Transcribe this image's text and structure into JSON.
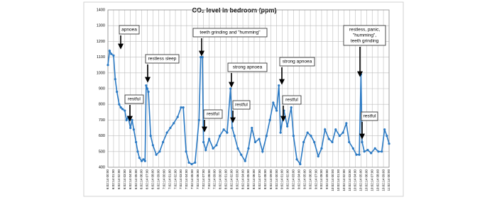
{
  "chart_data": {
    "type": "line",
    "title": "CO₂ level in bedroom (ppm)",
    "xlim": [
      0,
      50
    ],
    "ylim": [
      400,
      1400
    ],
    "yticks": [
      400,
      500,
      600,
      700,
      800,
      900,
      1000,
      1100,
      1200,
      1300,
      1400
    ],
    "xticks": [
      {
        "value": 0,
        "label": "6:02:14 00:00"
      },
      {
        "value": 1,
        "label": "6:02:14 01:00"
      },
      {
        "value": 2,
        "label": "6:02:14 02:00"
      },
      {
        "value": 3,
        "label": "6:02:14 03:00"
      },
      {
        "value": 4,
        "label": "6:02:14 04:00"
      },
      {
        "value": 5,
        "label": "6:02:14 05:00"
      },
      {
        "value": 6,
        "label": "6:02:14 06:00"
      },
      {
        "value": 7,
        "label": "6:02:14 07:00"
      },
      {
        "value": 8,
        "label": "6:02:14 08:00"
      },
      {
        "value": 9,
        "label": "6:02:14 09:00"
      },
      {
        "value": 10,
        "label": "7:02:14 00:00"
      },
      {
        "value": 11,
        "label": "7:02:14 01:00"
      },
      {
        "value": 12,
        "label": "7:02:14 02:00"
      },
      {
        "value": 13,
        "label": "7:02:14 03:00"
      },
      {
        "value": 14,
        "label": "7:02:14 04:00"
      },
      {
        "value": 15,
        "label": "7:02:14 05:00"
      },
      {
        "value": 16,
        "label": "7:02:14 06:00"
      },
      {
        "value": 17,
        "label": "7:02:14 07:00"
      },
      {
        "value": 18,
        "label": "7:02:14 08:00"
      },
      {
        "value": 19,
        "label": "7:02:14 09:00"
      },
      {
        "value": 20,
        "label": "8:02:14 00:00"
      },
      {
        "value": 21,
        "label": "8:02:14 01:00"
      },
      {
        "value": 22,
        "label": "8:02:14 02:00"
      },
      {
        "value": 23,
        "label": "8:02:14 03:00"
      },
      {
        "value": 24,
        "label": "8:02:14 04:00"
      },
      {
        "value": 25,
        "label": "8:02:14 05:00"
      },
      {
        "value": 26,
        "label": "8:02:14 06:00"
      },
      {
        "value": 27,
        "label": "8:02:14 07:00"
      },
      {
        "value": 28,
        "label": "8:02:14 08:00"
      },
      {
        "value": 29,
        "label": "8:02:14 09:00"
      },
      {
        "value": 30,
        "label": "9:02:14 00:00"
      },
      {
        "value": 31,
        "label": "9:02:14 01:00"
      },
      {
        "value": 32,
        "label": "9:02:14 02:00"
      },
      {
        "value": 33,
        "label": "9:02:14 03:00"
      },
      {
        "value": 34,
        "label": "9:02:14 04:00"
      },
      {
        "value": 35,
        "label": "9:02:14 05:00"
      },
      {
        "value": 36,
        "label": "9:02:14 06:00"
      },
      {
        "value": 37,
        "label": "9:02:14 07:00"
      },
      {
        "value": 38,
        "label": "9:02:14 08:00"
      },
      {
        "value": 39,
        "label": "9:02:14 09:00"
      },
      {
        "value": 40,
        "label": "10:02:14 00:00"
      },
      {
        "value": 41,
        "label": "10:02:14 01:00"
      },
      {
        "value": 42,
        "label": "10:02:14 02:00"
      },
      {
        "value": 43,
        "label": "10:02:14 03:00"
      },
      {
        "value": 44,
        "label": "10:02:14 04:00"
      },
      {
        "value": 45,
        "label": "10:02:14 05:00"
      },
      {
        "value": 46,
        "label": "10:02:14 06:00"
      },
      {
        "value": 47,
        "label": "10:02:14 07:00"
      },
      {
        "value": 48,
        "label": "10:02:14 08:00"
      },
      {
        "value": 49,
        "label": "10:02:14 09:00"
      },
      {
        "value": 50,
        "label": "11:02:14 00:00"
      }
    ],
    "grid": true,
    "series": [
      {
        "color": "#2b7ac4",
        "x": [
          0,
          0.3,
          0.6,
          1,
          1.3,
          1.6,
          2,
          2.3,
          2.6,
          3,
          3.3,
          3.6,
          4,
          4.3,
          4.6,
          5,
          5.3,
          5.6,
          6,
          6.3,
          6.6,
          6.8,
          7,
          7.2,
          7.6,
          8,
          8.6,
          9.2,
          9.8,
          10.5,
          11.1,
          11.7,
          12.4,
          13,
          13.4,
          13.9,
          14.4,
          14.9,
          15.5,
          16.2,
          16.5,
          16.8,
          17,
          17.4,
          18,
          18.7,
          19.3,
          19.9,
          20.6,
          21.2,
          21.8,
          22.1,
          22.5,
          23.1,
          23.7,
          24.4,
          25,
          25.6,
          26.2,
          26.9,
          27.5,
          28.2,
          28.8,
          29.4,
          30,
          30.4,
          30.7,
          31.3,
          31.9,
          32.6,
          33,
          33.6,
          34.2,
          34.8,
          35.5,
          36.1,
          36.7,
          37.4,
          38,
          38.6,
          39.3,
          39.9,
          40.5,
          41.2,
          41.8,
          42.4,
          42.9,
          43.6,
          44.2,
          44.7,
          45,
          45.2,
          45.6,
          46.2,
          46.8,
          47.5,
          48.1,
          48.7,
          49.2,
          49.6,
          50
        ],
        "values": [
          1050,
          1140,
          1120,
          1110,
          960,
          880,
          800,
          780,
          770,
          760,
          700,
          720,
          650,
          700,
          640,
          560,
          500,
          460,
          440,
          450,
          440,
          920,
          900,
          880,
          600,
          540,
          480,
          500,
          560,
          620,
          650,
          680,
          720,
          780,
          780,
          500,
          430,
          420,
          430,
          700,
          1100,
          1100,
          560,
          510,
          580,
          520,
          540,
          600,
          640,
          620,
          900,
          650,
          600,
          520,
          480,
          440,
          520,
          650,
          560,
          580,
          500,
          600,
          700,
          810,
          760,
          920,
          620,
          760,
          660,
          780,
          600,
          450,
          420,
          560,
          620,
          600,
          560,
          470,
          520,
          640,
          580,
          560,
          640,
          600,
          620,
          680,
          560,
          520,
          480,
          480,
          990,
          560,
          500,
          510,
          490,
          520,
          500,
          500,
          640,
          600,
          550
        ]
      }
    ],
    "annotations": [
      {
        "lines": [
          "apnoea"
        ]
      },
      {
        "lines": [
          "restful"
        ]
      },
      {
        "lines": [
          "restless sleep"
        ]
      },
      {
        "lines": [
          "teeth grinding and \"humming\""
        ]
      },
      {
        "lines": [
          "restful"
        ]
      },
      {
        "lines": [
          "strong apnoea"
        ]
      },
      {
        "lines": [
          "restful"
        ]
      },
      {
        "lines": [
          "strong apnoea"
        ]
      },
      {
        "lines": [
          "restful"
        ]
      },
      {
        "lines": [
          "restless, panic,",
          "\"humming\",",
          "teeth grinding"
        ]
      },
      {
        "lines": [
          "restful"
        ]
      }
    ]
  }
}
